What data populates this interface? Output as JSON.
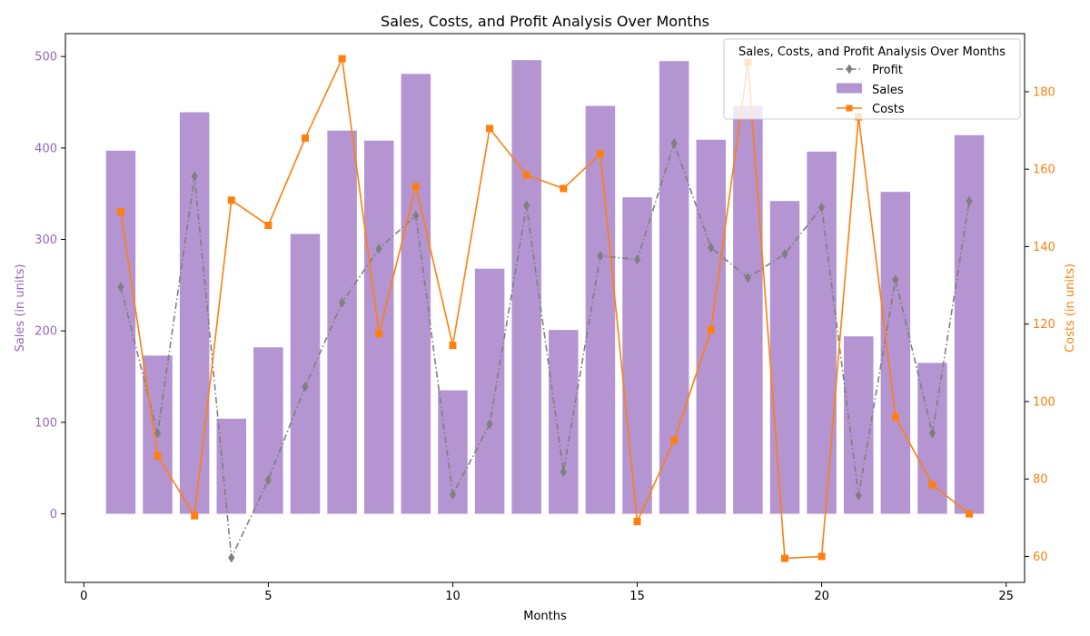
{
  "chart_data": {
    "type": "bar",
    "title": "Sales, Costs, and Profit Analysis Over Months",
    "xlabel": "Months",
    "ylabel_left": "Sales (in units)",
    "ylabel_right": "Costs (in units)",
    "x": [
      1,
      2,
      3,
      4,
      5,
      6,
      7,
      8,
      9,
      10,
      11,
      12,
      13,
      14,
      15,
      16,
      17,
      18,
      19,
      20,
      21,
      22,
      23,
      24
    ],
    "xlim": [
      -0.5,
      25.5
    ],
    "ylim_left": [
      -75,
      525
    ],
    "ylim_right": [
      53.3,
      195
    ],
    "x_ticks": [
      0,
      5,
      10,
      15,
      20,
      25
    ],
    "y_ticks_left": [
      0,
      100,
      200,
      300,
      400,
      500
    ],
    "y_ticks_right": [
      60,
      80,
      100,
      120,
      140,
      160,
      180
    ],
    "grid": false,
    "legend": {
      "title": "Sales, Costs, and Profit Analysis Over Months",
      "placement": "upper right"
    },
    "series": [
      {
        "name": "Profit",
        "kind": "line",
        "axis": "left",
        "color": "#7f7f7f",
        "marker": "diamond",
        "linestyle": "dashdot",
        "values": [
          248,
          88,
          369,
          -48,
          37,
          139,
          231,
          290,
          326,
          21,
          98,
          337,
          46,
          282,
          278,
          405,
          291,
          258,
          284,
          335,
          20,
          256,
          88,
          342
        ]
      },
      {
        "name": "Sales",
        "kind": "bar",
        "axis": "left",
        "color": "#9467bd",
        "values": [
          397,
          173,
          439,
          104,
          182,
          306,
          419,
          408,
          481,
          135,
          268,
          496,
          201,
          446,
          346,
          495,
          409,
          446,
          342,
          396,
          194,
          352,
          165,
          414
        ]
      },
      {
        "name": "Costs",
        "kind": "line",
        "axis": "right",
        "color": "#ff7f0e",
        "marker": "square",
        "linestyle": "solid",
        "values": [
          149,
          86,
          70.5,
          152,
          145.5,
          168,
          188.5,
          117.5,
          155.5,
          114.5,
          170.5,
          158.5,
          155,
          164,
          69,
          90,
          118.5,
          187.5,
          59.5,
          60,
          173.5,
          96,
          78.5,
          71
        ]
      }
    ]
  }
}
